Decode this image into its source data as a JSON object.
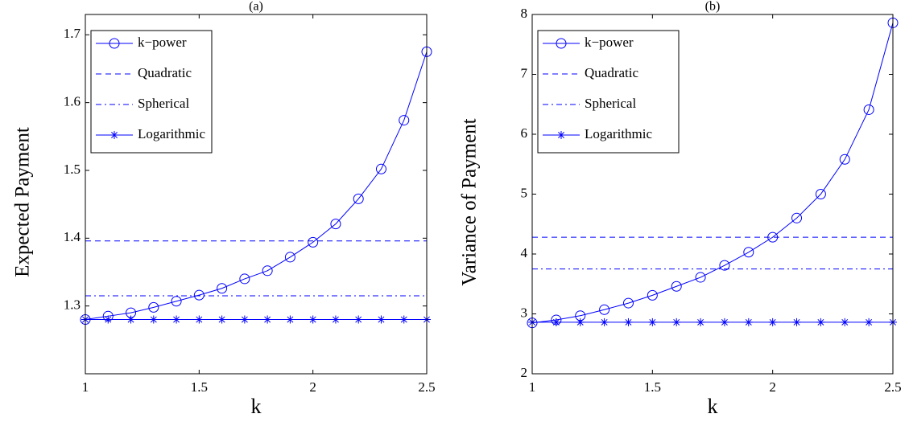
{
  "chart_data": [
    {
      "type": "line",
      "title": "(a)",
      "xlabel": "k",
      "ylabel": "Expected Payment",
      "x": [
        1,
        1.1,
        1.2,
        1.3,
        1.4,
        1.5,
        1.6,
        1.7,
        1.8,
        1.9,
        2,
        2.1,
        2.2,
        2.3,
        2.4,
        2.5
      ],
      "xlim": [
        1,
        2.5
      ],
      "xticks": [
        1,
        1.5,
        2,
        2.5
      ],
      "ylim": [
        1.2,
        1.73
      ],
      "yticks": [
        1.3,
        1.4,
        1.5,
        1.6,
        1.7
      ],
      "legend": "upper left",
      "series": [
        {
          "name": "k−power",
          "color": "#0000ff",
          "line_style": "solid",
          "marker": "circle",
          "values": [
            1.28,
            1.285,
            1.29,
            1.298,
            1.307,
            1.316,
            1.326,
            1.34,
            1.352,
            1.372,
            1.394,
            1.421,
            1.458,
            1.502,
            1.574,
            1.675
          ]
        },
        {
          "name": "Quadratic",
          "color": "#0000ff",
          "line_style": "dashed",
          "marker": "none",
          "values": [
            1.396,
            1.396,
            1.396,
            1.396,
            1.396,
            1.396,
            1.396,
            1.396,
            1.396,
            1.396,
            1.396,
            1.396,
            1.396,
            1.396,
            1.396,
            1.396
          ]
        },
        {
          "name": "Spherical",
          "color": "#0000ff",
          "line_style": "dashdot",
          "marker": "none",
          "values": [
            1.315,
            1.315,
            1.315,
            1.315,
            1.315,
            1.315,
            1.315,
            1.315,
            1.315,
            1.315,
            1.315,
            1.315,
            1.315,
            1.315,
            1.315,
            1.315
          ]
        },
        {
          "name": "Logarithmic",
          "color": "#0000ff",
          "line_style": "solid",
          "marker": "star",
          "values": [
            1.28,
            1.28,
            1.28,
            1.28,
            1.28,
            1.28,
            1.28,
            1.28,
            1.28,
            1.28,
            1.28,
            1.28,
            1.28,
            1.28,
            1.28,
            1.28
          ]
        }
      ]
    },
    {
      "type": "line",
      "title": "(b)",
      "xlabel": "k",
      "ylabel": "Variance of Payment",
      "x": [
        1,
        1.1,
        1.2,
        1.3,
        1.4,
        1.5,
        1.6,
        1.7,
        1.8,
        1.9,
        2,
        2.1,
        2.2,
        2.3,
        2.4,
        2.5
      ],
      "xlim": [
        1,
        2.5
      ],
      "xticks": [
        1,
        1.5,
        2,
        2.5
      ],
      "ylim": [
        2,
        8
      ],
      "yticks": [
        2,
        3,
        4,
        5,
        6,
        7,
        8
      ],
      "legend": "upper left",
      "series": [
        {
          "name": "k−power",
          "color": "#0000ff",
          "line_style": "solid",
          "marker": "circle",
          "values": [
            2.85,
            2.9,
            2.97,
            3.07,
            3.18,
            3.31,
            3.46,
            3.61,
            3.81,
            4.03,
            4.28,
            4.6,
            5.0,
            5.58,
            6.41,
            7.86
          ]
        },
        {
          "name": "Quadratic",
          "color": "#0000ff",
          "line_style": "dashed",
          "marker": "none",
          "values": [
            4.28,
            4.28,
            4.28,
            4.28,
            4.28,
            4.28,
            4.28,
            4.28,
            4.28,
            4.28,
            4.28,
            4.28,
            4.28,
            4.28,
            4.28,
            4.28
          ]
        },
        {
          "name": "Spherical",
          "color": "#0000ff",
          "line_style": "dashdot",
          "marker": "none",
          "values": [
            3.75,
            3.75,
            3.75,
            3.75,
            3.75,
            3.75,
            3.75,
            3.75,
            3.75,
            3.75,
            3.75,
            3.75,
            3.75,
            3.75,
            3.75,
            3.75
          ]
        },
        {
          "name": "Logarithmic",
          "color": "#0000ff",
          "line_style": "solid",
          "marker": "star",
          "values": [
            2.86,
            2.86,
            2.86,
            2.86,
            2.86,
            2.86,
            2.86,
            2.86,
            2.86,
            2.86,
            2.86,
            2.86,
            2.86,
            2.86,
            2.86,
            2.86
          ]
        }
      ]
    }
  ]
}
